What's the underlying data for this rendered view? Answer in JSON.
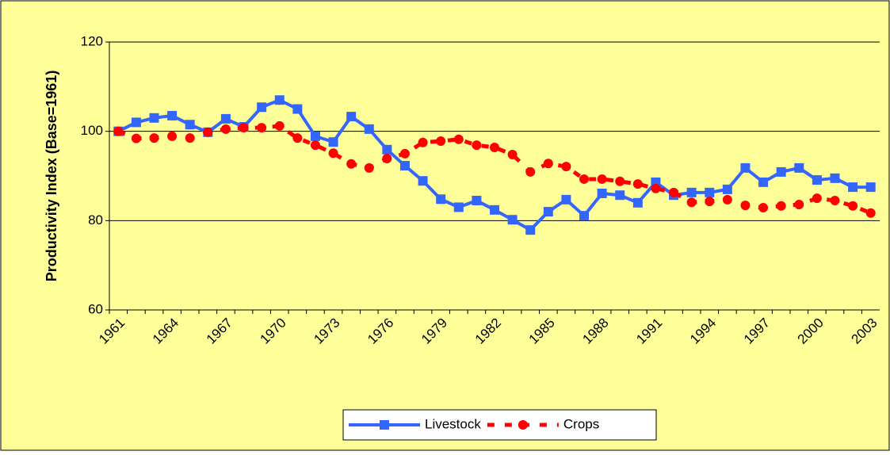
{
  "chart_data": {
    "type": "line",
    "y_label": "Productivity Index (Base=1961)",
    "categories": [
      "1961",
      null,
      null,
      "1964",
      null,
      null,
      "1967",
      null,
      null,
      "1970",
      null,
      null,
      "1973",
      null,
      null,
      "1976",
      null,
      null,
      "1979",
      null,
      null,
      "1982",
      null,
      null,
      "1985",
      null,
      null,
      "1988",
      null,
      null,
      "1991",
      null,
      null,
      "1994",
      null,
      null,
      "1997",
      null,
      null,
      "2000",
      null,
      null,
      "2003"
    ],
    "series": [
      {
        "name": "Livestock",
        "color": "#3366ff",
        "values": [
          100,
          102,
          103,
          103.5,
          101.5,
          99.8,
          102.8,
          101,
          105.4,
          107,
          105,
          98.9,
          97.6,
          103.3,
          100.5,
          95.9,
          92.3,
          88.9,
          84.8,
          83,
          84.5,
          82.4,
          80.2,
          77.9,
          82,
          84.7,
          81.1,
          86.1,
          85.7,
          84,
          88.6,
          85.7,
          86.3,
          86.3,
          87,
          91.8,
          88.6,
          90.9,
          91.8,
          89.1,
          89.5,
          87.5,
          87.5
        ]
      },
      {
        "name": "Crops",
        "color": "#ff0000",
        "values": [
          100,
          98.4,
          98.5,
          98.9,
          98.5,
          99.8,
          100.5,
          100.8,
          100.8,
          101.2,
          98.5,
          96.9,
          95.1,
          92.7,
          91.8,
          93.9,
          95,
          97.5,
          97.8,
          98.2,
          96.9,
          96.4,
          94.8,
          90.9,
          92.8,
          92.1,
          89.3,
          89.3,
          88.8,
          88.2,
          87.2,
          86.3,
          84.1,
          84.3,
          84.7,
          83.4,
          82.9,
          83.3,
          83.6,
          85,
          84.5,
          83.3,
          81.7
        ]
      }
    ],
    "ylim": [
      60,
      120
    ],
    "yticks": [
      60,
      80,
      100,
      120
    ],
    "grid": true
  }
}
